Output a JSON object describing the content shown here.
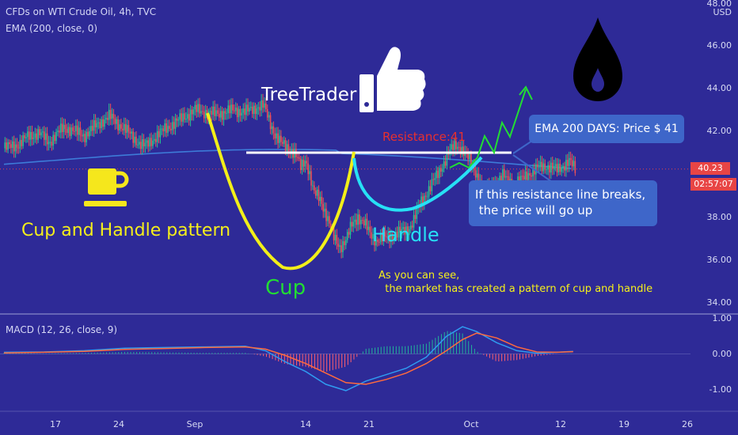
{
  "header": {
    "title": "CFDs on WTI Crude Oil, 4h, TVC",
    "indicator": "EMA (200, close, 0)",
    "macd_label": "MACD (12, 26, close, 9)"
  },
  "price_axis": {
    "labels": [
      "48.00",
      "46.00",
      "44.00",
      "42.00",
      "38.00",
      "36.00",
      "34.00"
    ],
    "unit": "USD",
    "last_price": "40.23",
    "countdown": "02:57:07"
  },
  "macd_axis": {
    "labels": [
      "1.00",
      "0.00",
      "-1.00"
    ]
  },
  "time_axis": {
    "labels": [
      "17",
      "24",
      "Sep",
      "14",
      "21",
      "Oct",
      "12",
      "19",
      "26"
    ]
  },
  "annotations": {
    "brand": "TreeTrader",
    "pattern": "Cup and Handle pattern",
    "cup": "Cup",
    "handle": "Handle",
    "resistance": "Resistance:41",
    "ema_box": "EMA 200 DAYS: Price $ 41",
    "break_line1": "If this resistance line breaks,",
    "break_line2": " the price will go up",
    "note_line1": "As you can see,",
    "note_line2": "  the market has created a pattern of cup and handle"
  },
  "colors": {
    "background": "#2e2a97",
    "ema": "#3d7bd8",
    "cup": "#f2ef19",
    "handle": "#27e0f5",
    "projection": "#22dd33",
    "resistance_line": "#ffffff",
    "resistance_text": "#e8302e",
    "last_price_tag": "#e84545",
    "ema_box": "#3e66c9"
  },
  "icons": [
    "coffee-cup-icon",
    "thumbs-up-icon",
    "oil-drop-icon"
  ],
  "chart_data": {
    "type": "candlestick",
    "symbol": "CFDs on WTI Crude Oil, 4h, TVC",
    "ylim": [
      33.7,
      48.0
    ],
    "y_unit": "USD",
    "resistance": 41,
    "last_price": 40.23,
    "ema_200_level": 40.6,
    "path_points": [
      [
        0,
        41.2
      ],
      [
        15,
        41.4
      ],
      [
        25,
        41.8
      ],
      [
        35,
        41.9
      ],
      [
        45,
        41.5
      ],
      [
        60,
        42.2
      ],
      [
        70,
        42.0
      ],
      [
        80,
        41.8
      ],
      [
        95,
        42.4
      ],
      [
        105,
        42.7
      ],
      [
        115,
        42.3
      ],
      [
        125,
        41.9
      ],
      [
        135,
        41.4
      ],
      [
        140,
        41.3
      ],
      [
        150,
        41.7
      ],
      [
        160,
        42.1
      ],
      [
        170,
        42.4
      ],
      [
        180,
        42.7
      ],
      [
        190,
        43.0
      ],
      [
        200,
        42.9
      ],
      [
        210,
        42.8
      ],
      [
        220,
        42.9
      ],
      [
        230,
        43.0
      ],
      [
        240,
        42.9
      ],
      [
        250,
        43.1
      ],
      [
        258,
        43.2
      ],
      [
        264,
        42.5
      ],
      [
        270,
        41.8
      ],
      [
        276,
        41.4
      ],
      [
        284,
        41.2
      ],
      [
        290,
        40.9
      ],
      [
        295,
        40.3
      ],
      [
        300,
        40.7
      ],
      [
        303,
        40.2
      ],
      [
        308,
        39.1
      ],
      [
        315,
        38.8
      ],
      [
        322,
        37.9
      ],
      [
        328,
        37.0
      ],
      [
        334,
        36.6
      ],
      [
        340,
        36.9
      ],
      [
        346,
        37.6
      ],
      [
        352,
        38.0
      ],
      [
        358,
        37.7
      ],
      [
        364,
        37.2
      ],
      [
        370,
        36.9
      ],
      [
        378,
        37.0
      ],
      [
        384,
        37.1
      ],
      [
        390,
        37.2
      ],
      [
        396,
        37.3
      ],
      [
        402,
        37.4
      ],
      [
        408,
        37.9
      ],
      [
        414,
        38.6
      ],
      [
        420,
        39.1
      ],
      [
        426,
        39.6
      ],
      [
        432,
        40.0
      ],
      [
        438,
        40.6
      ],
      [
        442,
        41.0
      ],
      [
        446,
        41.2
      ],
      [
        450,
        41.3
      ],
      [
        455,
        41.2
      ],
      [
        460,
        40.9
      ],
      [
        466,
        40.3
      ],
      [
        472,
        39.8
      ],
      [
        478,
        39.2
      ],
      [
        484,
        39.4
      ],
      [
        490,
        39.6
      ],
      [
        496,
        39.9
      ],
      [
        502,
        39.7
      ],
      [
        508,
        39.5
      ],
      [
        514,
        39.7
      ],
      [
        520,
        40.0
      ],
      [
        526,
        40.1
      ],
      [
        532,
        40.3
      ],
      [
        538,
        40.4
      ],
      [
        544,
        40.3
      ],
      [
        550,
        40.2
      ],
      [
        556,
        40.4
      ],
      [
        562,
        40.6
      ],
      [
        568,
        40.2
      ]
    ],
    "macd": {
      "ylim": [
        -1.3,
        1.1
      ],
      "macd_line": [
        [
          0,
          0.05
        ],
        [
          40,
          0.06
        ],
        [
          80,
          0.1
        ],
        [
          120,
          0.18
        ],
        [
          160,
          0.2
        ],
        [
          200,
          0.22
        ],
        [
          240,
          0.24
        ],
        [
          260,
          0.1
        ],
        [
          280,
          -0.25
        ],
        [
          300,
          -0.55
        ],
        [
          320,
          -0.95
        ],
        [
          340,
          -1.15
        ],
        [
          360,
          -0.85
        ],
        [
          380,
          -0.65
        ],
        [
          400,
          -0.45
        ],
        [
          420,
          -0.1
        ],
        [
          440,
          0.55
        ],
        [
          456,
          0.85
        ],
        [
          470,
          0.7
        ],
        [
          490,
          0.35
        ],
        [
          510,
          0.1
        ],
        [
          530,
          0.02
        ],
        [
          550,
          0.05
        ],
        [
          566,
          0.08
        ]
      ],
      "signal_line": [
        [
          0,
          0.03
        ],
        [
          40,
          0.05
        ],
        [
          80,
          0.08
        ],
        [
          120,
          0.14
        ],
        [
          160,
          0.17
        ],
        [
          200,
          0.2
        ],
        [
          240,
          0.22
        ],
        [
          260,
          0.15
        ],
        [
          280,
          -0.05
        ],
        [
          300,
          -0.3
        ],
        [
          320,
          -0.6
        ],
        [
          340,
          -0.9
        ],
        [
          360,
          -0.95
        ],
        [
          380,
          -0.8
        ],
        [
          400,
          -0.6
        ],
        [
          420,
          -0.3
        ],
        [
          440,
          0.1
        ],
        [
          456,
          0.45
        ],
        [
          470,
          0.65
        ],
        [
          490,
          0.5
        ],
        [
          510,
          0.22
        ],
        [
          530,
          0.06
        ],
        [
          550,
          0.05
        ],
        [
          566,
          0.07
        ]
      ]
    }
  }
}
